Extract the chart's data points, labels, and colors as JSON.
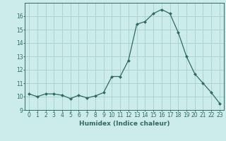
{
  "x": [
    0,
    1,
    2,
    3,
    4,
    5,
    6,
    7,
    8,
    9,
    10,
    11,
    12,
    13,
    14,
    15,
    16,
    17,
    18,
    19,
    20,
    21,
    22,
    23
  ],
  "y": [
    10.2,
    10.0,
    10.2,
    10.2,
    10.1,
    9.85,
    10.1,
    9.9,
    10.05,
    10.3,
    11.5,
    11.5,
    12.7,
    15.4,
    15.6,
    16.2,
    16.5,
    16.2,
    14.8,
    13.0,
    11.7,
    11.0,
    10.3,
    9.5
  ],
  "line_color": "#2e6b5e",
  "marker_color": "#2e6b5e",
  "bg_color": "#ccecea",
  "grid_color": "#aad4d0",
  "xlabel": "Humidex (Indice chaleur)",
  "xlim": [
    -0.5,
    23.5
  ],
  "ylim": [
    9,
    17
  ],
  "yticks": [
    9,
    10,
    11,
    12,
    13,
    14,
    15,
    16
  ],
  "xticks": [
    0,
    1,
    2,
    3,
    4,
    5,
    6,
    7,
    8,
    9,
    10,
    11,
    12,
    13,
    14,
    15,
    16,
    17,
    18,
    19,
    20,
    21,
    22,
    23
  ],
  "label_fontsize": 6.5,
  "tick_fontsize": 5.5
}
